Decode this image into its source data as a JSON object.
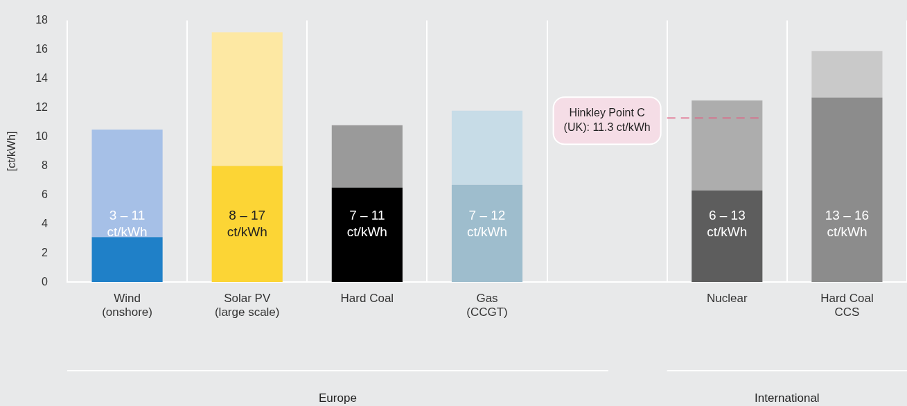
{
  "chart_data": {
    "type": "bar",
    "stacked": true,
    "ylabel": "[ct/kWh]",
    "categories": [
      "Wind\n(onshore)",
      "Solar PV\n(large scale)",
      "Hard Coal",
      "Gas\n(CCGT)",
      null,
      "Nuclear",
      "Hard Coal\nCCS"
    ],
    "series": [
      {
        "colors": [
          "#1f80c8",
          "#fcd535",
          "#000000",
          "#9ebdcd",
          null,
          "#5d5d5d",
          "#8c8c8c"
        ],
        "values": [
          3.1,
          8.0,
          6.5,
          6.7,
          null,
          6.3,
          12.7
        ]
      },
      {
        "colors": [
          "#a6c0e7",
          "#fde8a3",
          "#9a9a9a",
          "#c7dce7",
          null,
          "#adadad",
          "#c9c9c9"
        ],
        "values": [
          7.4,
          9.2,
          4.3,
          5.1,
          null,
          6.2,
          3.2
        ]
      }
    ],
    "ylim": [
      0,
      18
    ],
    "yticks": [
      0,
      2,
      4,
      6,
      8,
      10,
      12,
      14,
      16,
      18
    ],
    "grid": "x",
    "legend": false,
    "ref_lines": [
      {
        "axis": "y",
        "value": 11.3,
        "label": "Hinkley Point C\n(UK): 11.3 ct/kWh",
        "color": "#e06383",
        "line_style": "dashed"
      }
    ],
    "annotations": [
      "3 – 11\nct/kWh",
      "8 – 17\nct/kWh",
      "7 – 11\nct/kWh",
      "7 – 12\nct/kWh",
      "6 – 13\nct/kWh",
      "13 – 16\nct/kWh",
      "Europe",
      "International"
    ]
  }
}
